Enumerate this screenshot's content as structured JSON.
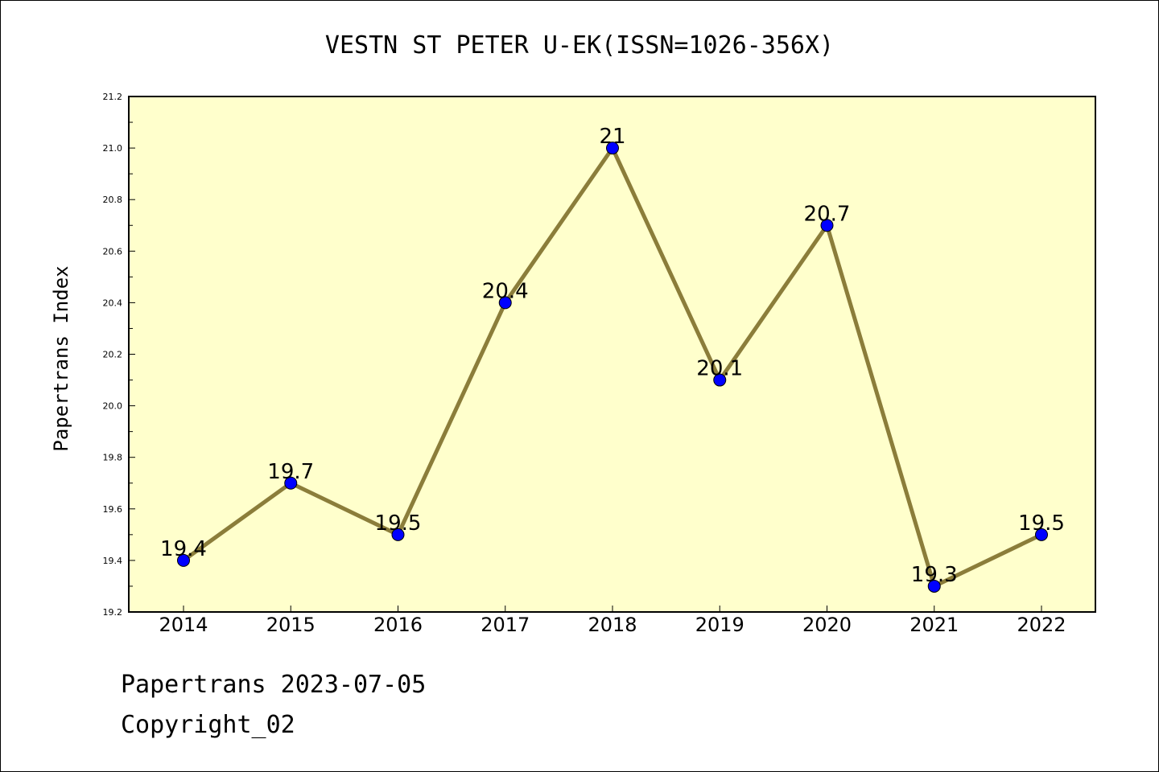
{
  "chart_data": {
    "type": "line",
    "title": "VESTN ST PETER U-EK(ISSN=1026-356X)",
    "xlabel": "",
    "ylabel": "Papertrans Index",
    "categories": [
      "2014",
      "2015",
      "2016",
      "2017",
      "2018",
      "2019",
      "2020",
      "2021",
      "2022"
    ],
    "series": [
      {
        "values": [
          19.4,
          19.7,
          19.5,
          20.4,
          21.0,
          20.1,
          20.7,
          19.3,
          19.5
        ],
        "data_labels": [
          "19.4",
          "19.7",
          "19.5",
          "20.4",
          "21",
          "20.1",
          "20.7",
          "19.3",
          "19.5"
        ]
      }
    ],
    "ylim": [
      19.2,
      21.2
    ],
    "yticks": [
      "19.2",
      "19.4",
      "19.6",
      "19.8",
      "20.0",
      "20.2",
      "20.4",
      "20.6",
      "20.8",
      "21.0",
      "21.2"
    ],
    "grid": false,
    "legend": "none",
    "colors": {
      "plot_background": "#ffffcc",
      "line": "#8b7d3a",
      "marker": "#0000ff"
    }
  },
  "footer": {
    "line1": "Papertrans 2023-07-05",
    "line2": "Copyright_02"
  }
}
